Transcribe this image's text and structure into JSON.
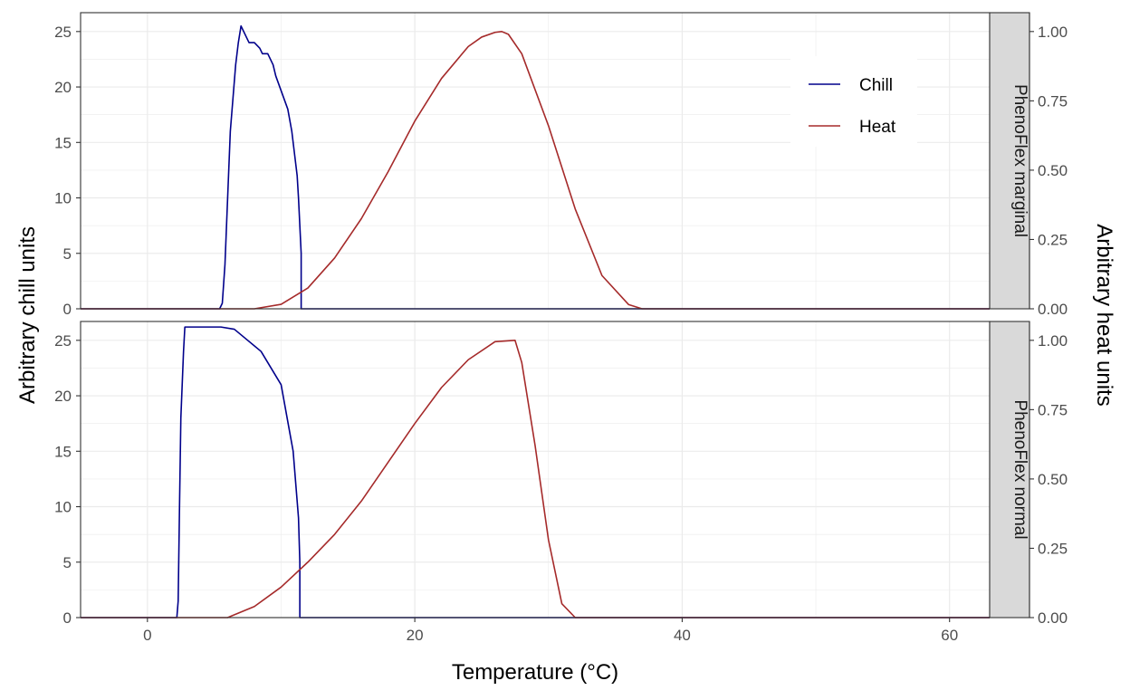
{
  "chart_data": {
    "type": "line",
    "xlabel": "Temperature (°C)",
    "ylabel_left": "Arbitrary chill units",
    "ylabel_right": "Arbitrary heat units",
    "xlim": [
      -5,
      63
    ],
    "xticks": [
      0,
      20,
      40,
      60
    ],
    "ylim_left": [
      0,
      26.7
    ],
    "yticks_left": [
      0,
      5,
      10,
      15,
      20,
      25
    ],
    "ylim_right": [
      0,
      1.068
    ],
    "yticks_right": [
      "0.00",
      "0.25",
      "0.50",
      "0.75",
      "1.00"
    ],
    "grid": true,
    "legend": {
      "placement": "top-right",
      "entries": [
        {
          "name": "Chill",
          "color": "#00008b"
        },
        {
          "name": "Heat",
          "color": "#a52a2a"
        }
      ]
    },
    "panels": [
      {
        "strip_label": "PhenoFlex marginal",
        "series": [
          {
            "name": "Chill",
            "axis": "left",
            "color": "#00008b",
            "x": [
              -5,
              5.4,
              5.6,
              5.8,
              6.0,
              6.2,
              6.4,
              6.6,
              6.8,
              7.0,
              7.2,
              7.4,
              7.6,
              8.0,
              8.4,
              8.6,
              9.0,
              9.4,
              9.6,
              9.9,
              10.2,
              10.5,
              10.8,
              11.0,
              11.2,
              11.3,
              11.5,
              11.5,
              63
            ],
            "y": [
              0,
              0,
              0.5,
              4,
              10,
              16,
              19,
              22,
              24,
              25.5,
              25,
              24.5,
              24,
              24,
              23.5,
              23,
              23,
              22,
              21,
              20,
              19,
              18,
              16,
              14,
              12,
              10,
              5,
              0,
              0
            ]
          },
          {
            "name": "Heat",
            "axis": "right",
            "color": "#a52a2a",
            "x": [
              -5,
              8,
              10,
              12,
              14,
              16,
              18,
              20,
              22,
              24,
              25,
              26,
              26.5,
              27,
              28,
              30,
              32,
              34,
              36,
              37,
              63
            ],
            "y": [
              0,
              0,
              0.016,
              0.075,
              0.183,
              0.325,
              0.494,
              0.677,
              0.831,
              0.946,
              0.98,
              0.997,
              1.0,
              0.99,
              0.92,
              0.66,
              0.36,
              0.12,
              0.015,
              0,
              0
            ]
          }
        ]
      },
      {
        "strip_label": "PhenoFlex normal",
        "series": [
          {
            "name": "Chill",
            "axis": "left",
            "color": "#00008b",
            "x": [
              -5,
              2.2,
              2.3,
              2.4,
              2.5,
              2.7,
              2.8,
              5.5,
              6.5,
              7.5,
              8.5,
              9.0,
              9.5,
              10.0,
              10.3,
              10.6,
              10.9,
              11.1,
              11.3,
              11.4,
              11.4,
              63
            ],
            "y": [
              0,
              0,
              1.5,
              10,
              18,
              24,
              26.2,
              26.2,
              26,
              25,
              24,
              23,
              22,
              21,
              19,
              17,
              15,
              12,
              9,
              5,
              0,
              0
            ]
          },
          {
            "name": "Heat",
            "axis": "right",
            "color": "#a52a2a",
            "x": [
              -5,
              6,
              8,
              10,
              12,
              14,
              16,
              18,
              20,
              22,
              24,
              26,
              27.5,
              28,
              29,
              30,
              31,
              32,
              63
            ],
            "y": [
              0,
              0,
              0.04,
              0.11,
              0.2,
              0.3,
              0.42,
              0.56,
              0.7,
              0.83,
              0.93,
              0.995,
              1.0,
              0.92,
              0.62,
              0.28,
              0.05,
              0,
              0
            ]
          }
        ]
      }
    ]
  }
}
